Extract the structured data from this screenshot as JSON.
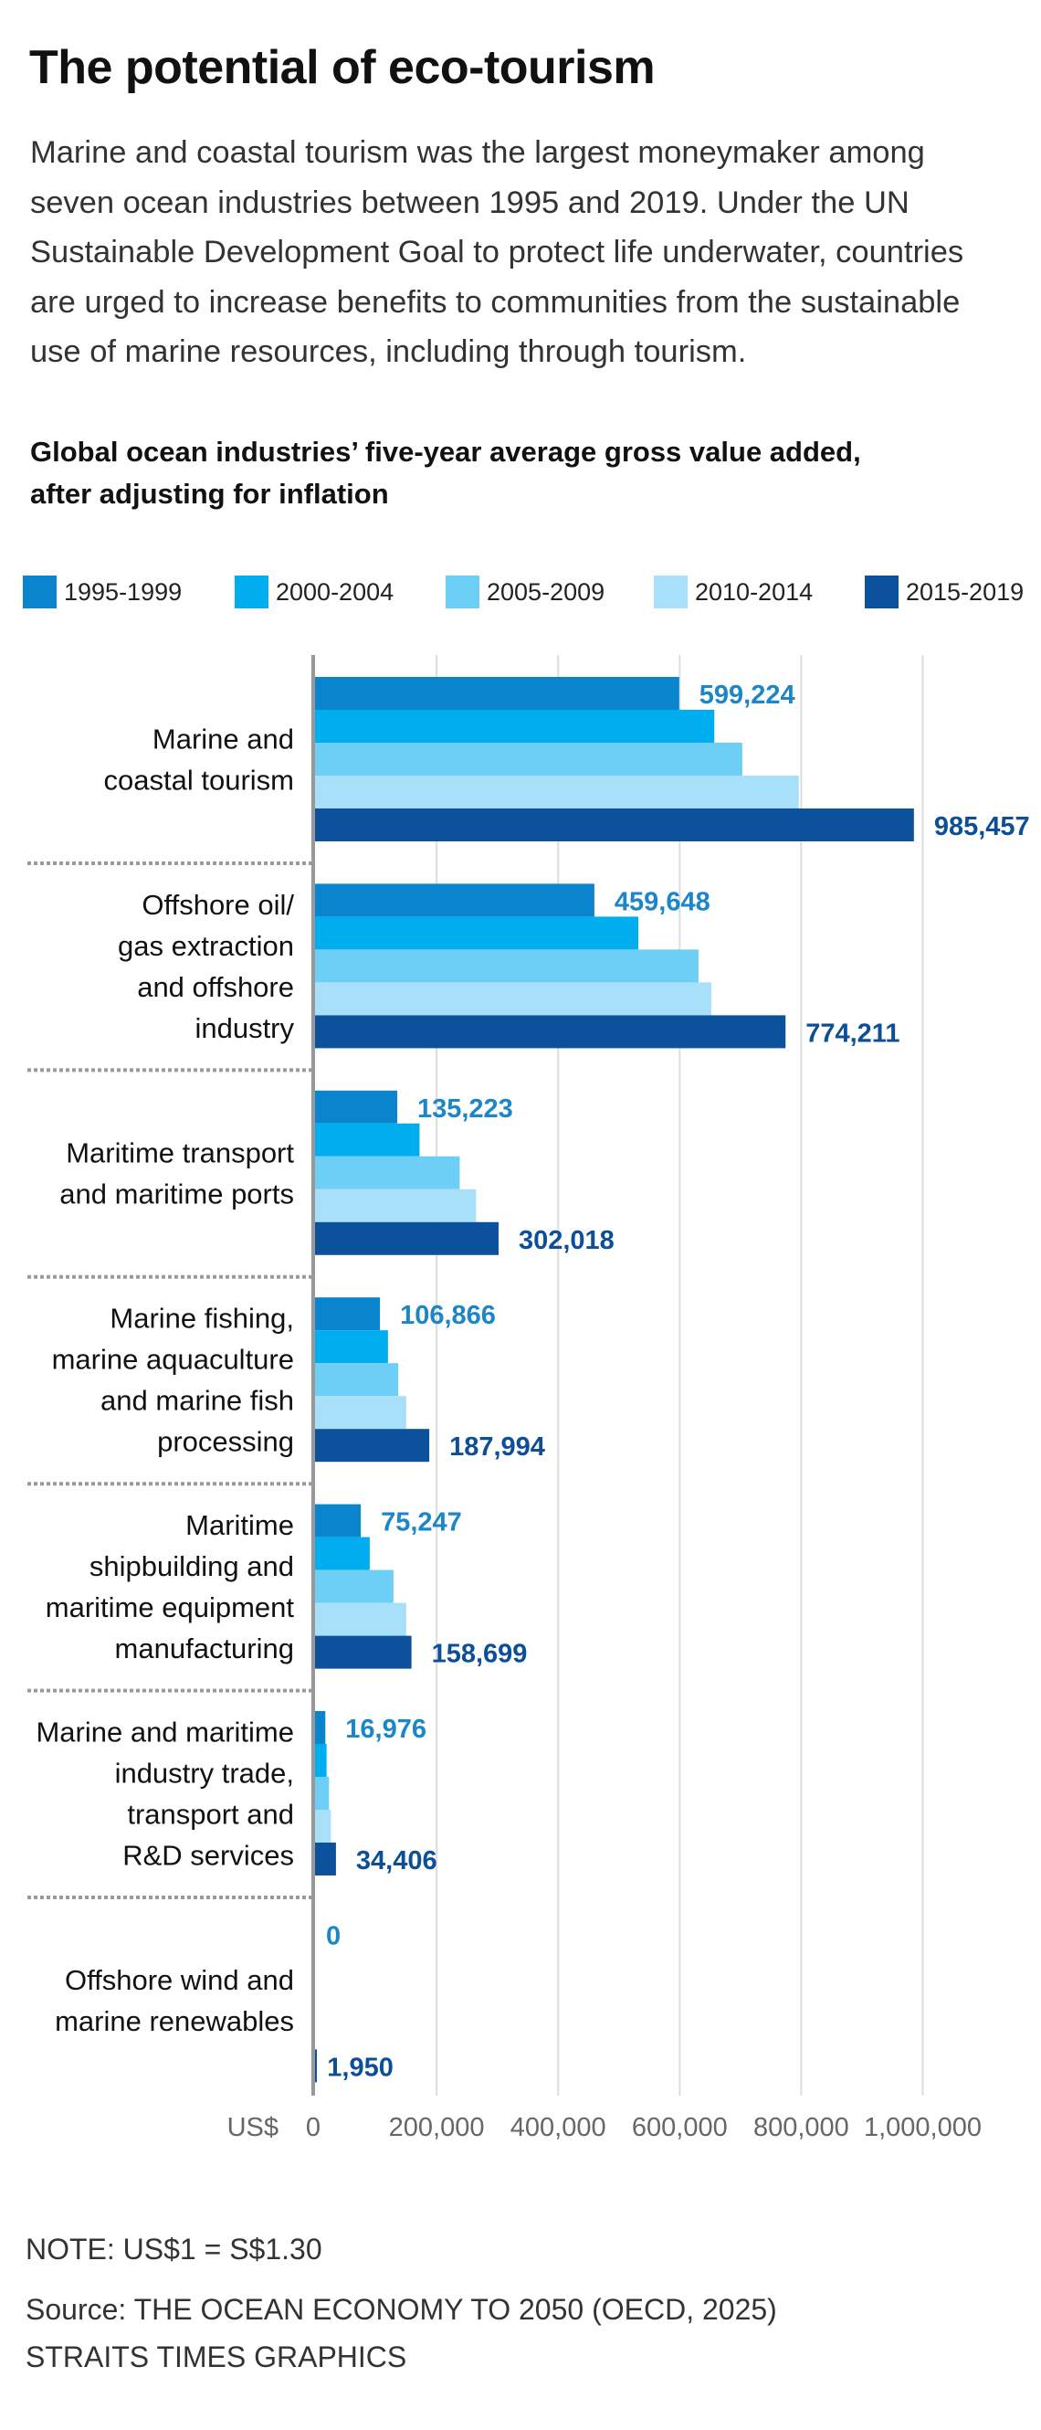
{
  "header": {
    "title": "The potential of eco-tourism",
    "intro_lines": [
      "Marine and coastal tourism was the largest moneymaker among",
      "seven ocean industries between 1995 and 2019. Under the UN",
      "Sustainable Development Goal to protect life underwater, countries",
      "are urged to increase benefits to communities from the sustainable",
      "use of marine resources, including through tourism."
    ]
  },
  "colors": {
    "label_light": "#1b86c8",
    "label_dark": "#0c4f97",
    "axis": "#999999",
    "grid": "#dddddd",
    "separator": "#9a9a9a",
    "tick_text": "#666666"
  },
  "chart_data": {
    "type": "bar",
    "orientation": "horizontal",
    "title": "Global ocean industries’ five-year average gross value added, after adjusting for inflation",
    "title_lines": [
      "Global ocean industries’ five-year average gross value added,",
      "after adjusting for inflation"
    ],
    "xlabel": "US$",
    "ylabel": "",
    "xlim": [
      0,
      1000000
    ],
    "x_ticks": [
      0,
      200000,
      400000,
      600000,
      800000,
      1000000
    ],
    "x_tick_labels": [
      "0",
      "200,000",
      "400,000",
      "600,000",
      "800,000",
      "1,000,000"
    ],
    "unit_label": "US$",
    "grid": true,
    "legend_position": "top",
    "categories": [
      "Marine and coastal tourism",
      "Offshore oil/ gas extraction and offshore industry",
      "Maritime transport and maritime ports",
      "Marine fishing, marine aquaculture and marine fish processing",
      "Maritime shipbuilding and maritime equipment manufacturing",
      "Marine and maritime industry trade, transport and R&D services",
      "Offshore wind and marine renewables"
    ],
    "category_lines": [
      [
        "Marine and",
        "coastal tourism"
      ],
      [
        "Offshore oil/",
        "gas extraction",
        "and offshore",
        "industry"
      ],
      [
        "Maritime transport",
        "and maritime ports"
      ],
      [
        "Marine fishing,",
        "marine aquaculture",
        "and marine fish",
        "processing"
      ],
      [
        "Maritime",
        "shipbuilding and",
        "maritime equipment",
        "manufacturing"
      ],
      [
        "Marine and maritime",
        "industry trade,",
        "transport and",
        "R&D services"
      ],
      [
        "Offshore wind and",
        "marine renewables"
      ]
    ],
    "series": [
      {
        "name": "1995-1999",
        "color": "#0a84cc",
        "values": [
          599224,
          459648,
          135223,
          106866,
          75247,
          16976,
          0
        ]
      },
      {
        "name": "2000-2004",
        "color": "#00aeef",
        "values": [
          657000,
          532000,
          172000,
          120000,
          90000,
          19000,
          0
        ]
      },
      {
        "name": "2005-2009",
        "color": "#6dcff6",
        "values": [
          703000,
          631000,
          238000,
          137000,
          129000,
          23000,
          0
        ]
      },
      {
        "name": "2010-2014",
        "color": "#a8dff9",
        "values": [
          796000,
          652000,
          265000,
          150000,
          150000,
          26000,
          0
        ]
      },
      {
        "name": "2015-2019",
        "color": "#0b519c",
        "values": [
          985457,
          774211,
          302018,
          187994,
          158699,
          34406,
          1950
        ]
      }
    ],
    "data_labels": [
      {
        "series": "1995-1999",
        "values": [
          "599,224",
          "459,648",
          "135,223",
          "106,866",
          "75,247",
          "16,976",
          "0"
        ]
      },
      {
        "series": "2015-2019",
        "values": [
          "985,457",
          "774,211",
          "302,018",
          "187,994",
          "158,699",
          "34,406",
          "1,950"
        ]
      }
    ]
  },
  "footer": {
    "note": "NOTE: US$1 = S$1.30",
    "source": "Source: THE OCEAN ECONOMY TO 2050 (OECD, 2025)",
    "credit": "STRAITS TIMES GRAPHICS"
  }
}
